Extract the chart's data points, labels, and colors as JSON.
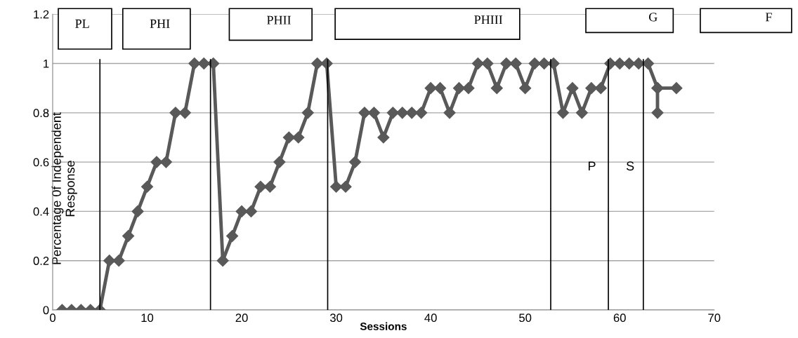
{
  "chart_data": {
    "type": "line",
    "xlabel": "Sessions",
    "ylabel": "Percentage 0f Independent\nResponse",
    "x": [
      1,
      2,
      3,
      4,
      5,
      6,
      7,
      8,
      9,
      10,
      11,
      12,
      13,
      14,
      15,
      16,
      17,
      18,
      19,
      20,
      21,
      22,
      23,
      24,
      25,
      26,
      27,
      28,
      29,
      30,
      31,
      32,
      33,
      34,
      35,
      36,
      37,
      38,
      39,
      40,
      41,
      42,
      43,
      44,
      45,
      46,
      47,
      48,
      49,
      50,
      51,
      52,
      53,
      54,
      55,
      56,
      57,
      58,
      59,
      60,
      61,
      62,
      63,
      64,
      64,
      64,
      66
    ],
    "series": [
      {
        "color": "#595959",
        "values": [
          0,
          0,
          0,
          0,
          0,
          0.2,
          0.2,
          0.3,
          0.4,
          0.5,
          0.6,
          0.6,
          0.8,
          0.8,
          1,
          1,
          1,
          0.2,
          0.3,
          0.4,
          0.4,
          0.5,
          0.5,
          0.6,
          0.7,
          0.7,
          0.8,
          1,
          1,
          0.5,
          0.5,
          0.6,
          0.8,
          0.8,
          0.7,
          0.8,
          0.8,
          0.8,
          0.8,
          0.9,
          0.9,
          0.8,
          0.9,
          0.9,
          1,
          1,
          0.9,
          1,
          1,
          0.9,
          1,
          1,
          1,
          0.8,
          0.9,
          0.8,
          0.9,
          0.9,
          1,
          1,
          1,
          1,
          1,
          0.9,
          0.8,
          0.9,
          0.9
        ]
      }
    ],
    "marker": "diamond",
    "line_style": "solid",
    "xlim": [
      0,
      70
    ],
    "xticks": [
      0,
      10,
      20,
      30,
      40,
      50,
      60,
      70
    ],
    "ylim": [
      0,
      1.2
    ],
    "yticks": [
      0,
      0.2,
      0.4,
      0.6,
      0.8,
      1,
      1.2
    ],
    "grid": "y",
    "legend": false,
    "ref_lines": [
      {
        "axis": "x",
        "value": 5,
        "color": "#000000"
      },
      {
        "axis": "x",
        "value": 16.7,
        "color": "#000000"
      },
      {
        "axis": "x",
        "value": 29.1,
        "color": "#000000"
      },
      {
        "axis": "x",
        "value": 52.7,
        "color": "#000000"
      },
      {
        "axis": "x",
        "value": 58.8,
        "color": "#000000"
      },
      {
        "axis": "x",
        "value": 62.5,
        "color": "#000000"
      }
    ],
    "annotations": [
      "PL",
      "PHI",
      "PHII",
      "PHIII",
      "G",
      "F",
      "P",
      "S"
    ]
  }
}
